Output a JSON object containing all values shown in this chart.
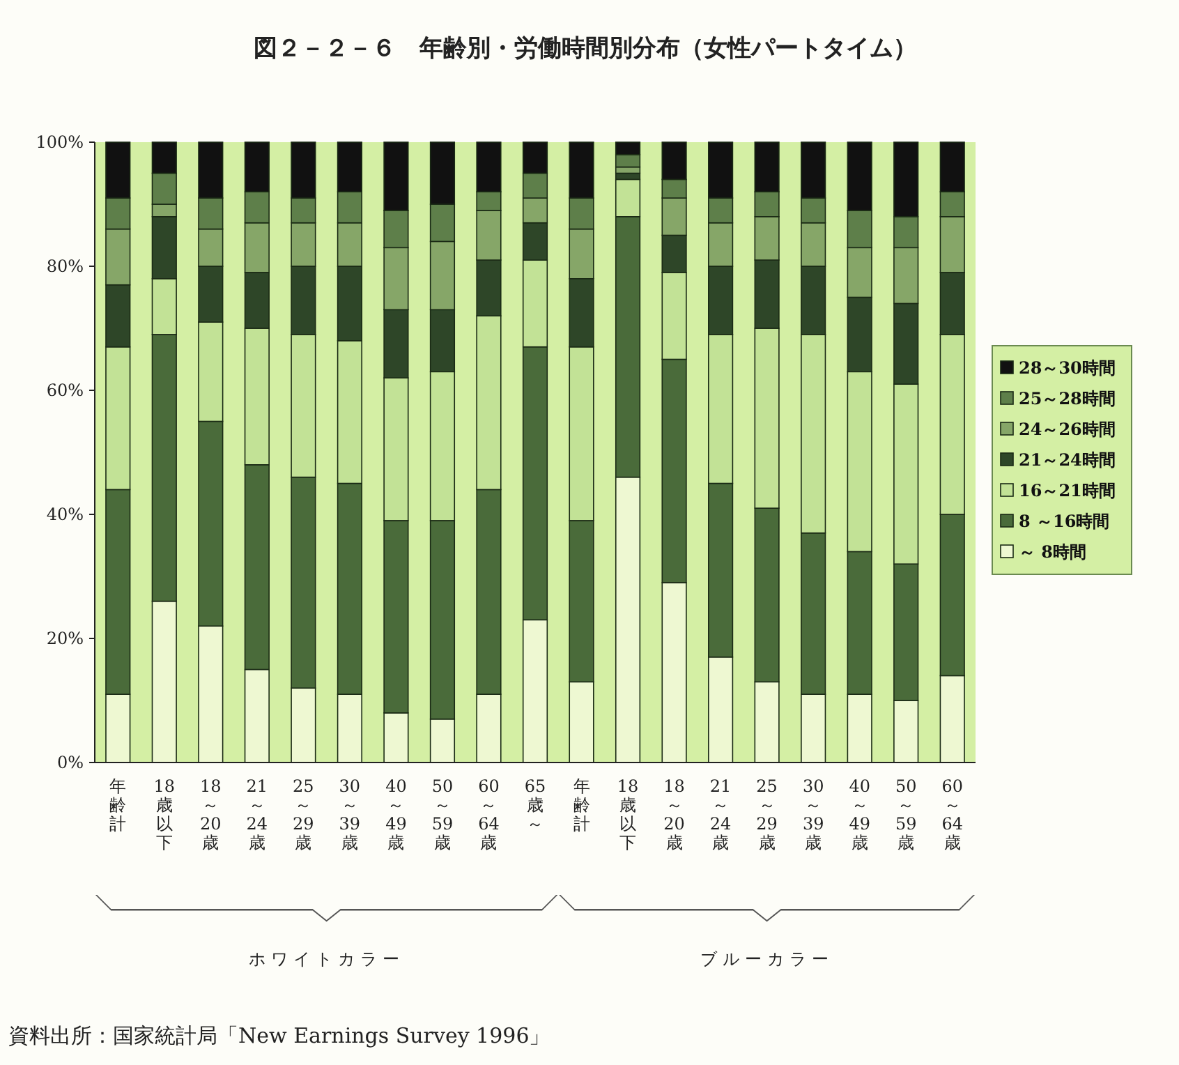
{
  "chart_data": {
    "type": "bar",
    "stacked": true,
    "title": "図２－２－６　年齢別・労働時間別分布（女性パートタイム）",
    "categories": [
      "年齢計",
      "18歳以下",
      "18～20歳",
      "21～24歳",
      "25～29歳",
      "30～39歳",
      "40～49歳",
      "50～59歳",
      "60～64歳",
      "65歳～",
      "年齢計",
      "18歳以下",
      "18～20歳",
      "21～24歳",
      "25～29歳",
      "30～39歳",
      "40～49歳",
      "50～59歳",
      "60～64歳"
    ],
    "series": [
      {
        "name": "～ 8時間",
        "color": "#eef8d2",
        "values": [
          11,
          26,
          22,
          15,
          12,
          11,
          8,
          7,
          11,
          23,
          13,
          46,
          29,
          17,
          13,
          11,
          11,
          10,
          14
        ]
      },
      {
        "name": "8 ～16時間",
        "color": "#4a6b3a",
        "values": [
          33,
          43,
          33,
          33,
          34,
          34,
          31,
          32,
          33,
          44,
          26,
          42,
          36,
          28,
          28,
          26,
          23,
          22,
          26
        ]
      },
      {
        "name": "16～21時間",
        "color": "#c2e296",
        "values": [
          23,
          9,
          16,
          22,
          23,
          23,
          23,
          24,
          28,
          14,
          28,
          6,
          14,
          24,
          29,
          32,
          29,
          29,
          29
        ]
      },
      {
        "name": "21～24時間",
        "color": "#2e4628",
        "values": [
          10,
          10,
          9,
          9,
          11,
          12,
          11,
          10,
          9,
          6,
          11,
          1,
          6,
          11,
          11,
          11,
          12,
          13,
          10
        ]
      },
      {
        "name": "24～26時間",
        "color": "#86a668",
        "values": [
          9,
          2,
          6,
          8,
          7,
          7,
          10,
          11,
          8,
          4,
          8,
          1,
          6,
          7,
          7,
          7,
          8,
          9,
          9
        ]
      },
      {
        "name": "25～28時間",
        "color": "#5e7f4a",
        "values": [
          5,
          5,
          5,
          5,
          4,
          5,
          6,
          6,
          3,
          4,
          5,
          2,
          3,
          4,
          4,
          4,
          6,
          5,
          4
        ]
      },
      {
        "name": "28～30時間",
        "color": "#111111",
        "values": [
          9,
          5,
          9,
          8,
          9,
          8,
          11,
          10,
          8,
          5,
          9,
          2,
          6,
          9,
          8,
          9,
          11,
          12,
          8
        ]
      }
    ],
    "ylim": [
      0,
      100
    ],
    "yticks": [
      {
        "value": 0,
        "label": "0%"
      },
      {
        "value": 20,
        "label": "20%"
      },
      {
        "value": 40,
        "label": "40%"
      },
      {
        "value": 60,
        "label": "60%"
      },
      {
        "value": 80,
        "label": "80%"
      },
      {
        "value": 100,
        "label": "100%"
      }
    ],
    "legend": "right",
    "annotations": [
      "ホワイトカラー",
      "ブルーカラー",
      "資料出所：国家統計局「New Earnings Survey 1996」"
    ]
  }
}
